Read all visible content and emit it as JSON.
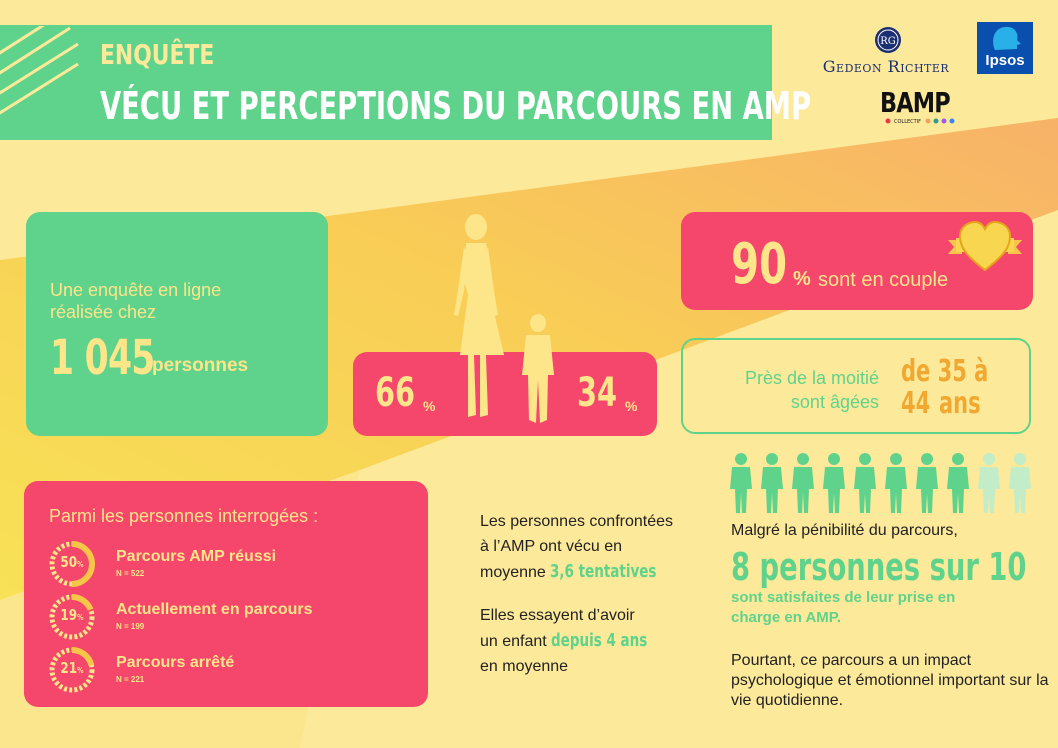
{
  "header": {
    "subtitle": "ENQUÊTE",
    "title": "VÉCU ET PERCEPTIONS DU PARCOURS EN AMP"
  },
  "logos": {
    "gedeon": "Gedeon Richter",
    "gedeon_mark": "RG",
    "ipsos": "Ipsos",
    "bamp": "BAMP",
    "bamp_sub": "COLLECTIF"
  },
  "survey": {
    "line1": "Une enquête en ligne",
    "line2": "réalisée chez",
    "number": "1 045",
    "unit": "personnes"
  },
  "gender": {
    "women_value": "66",
    "men_value": "34",
    "pct_symbol": "%"
  },
  "couple": {
    "value": "90",
    "pct_symbol": "%",
    "text": "sont en couple"
  },
  "age": {
    "line1": "Près de la moitié",
    "line2": "sont âgées",
    "range1": "de 35 à",
    "range2": "44",
    "range3": "ans"
  },
  "respondents": {
    "heading": "Parmi les personnes interrogées :",
    "stats": [
      {
        "value": "50",
        "fraction": 0.5,
        "symbol": "%",
        "label": "Parcours AMP réussi",
        "n": "N = 522"
      },
      {
        "value": "19",
        "fraction": 0.19,
        "symbol": "%",
        "label": "Actuellement en parcours",
        "n": "N = 199"
      },
      {
        "value": "21",
        "fraction": 0.21,
        "symbol": "%",
        "label": "Parcours arrêté",
        "n": "N = 221"
      }
    ]
  },
  "middle": {
    "p1_line1": "Les personnes confrontées",
    "p1_line2": "à l’AMP ont vécu en",
    "p1_line3": "moyenne",
    "p1_highlight": "3,6 tentatives",
    "p2_line1": "Elles essayent d’avoir",
    "p2_line2": "un enfant",
    "p2_highlight": "depuis 4 ans",
    "p2_line3": "en moyenne"
  },
  "satisfaction": {
    "people_total": 10,
    "people_highlighted": 8,
    "intro": "Malgré la pénibilité du parcours,",
    "headline": "8 personnes sur 10",
    "sub": "sont satisfaites de leur prise en charge en AMP.",
    "closing": "Pourtant, ce parcours a un impact psychologique et émotionnel important sur la vie quotidienne."
  },
  "colors": {
    "green": "#5fd38c",
    "red": "#f5466b",
    "yellow": "#fde58a",
    "background": "#fde99a",
    "orange": "#f0a830",
    "pale_green": "#c3ecc9"
  }
}
